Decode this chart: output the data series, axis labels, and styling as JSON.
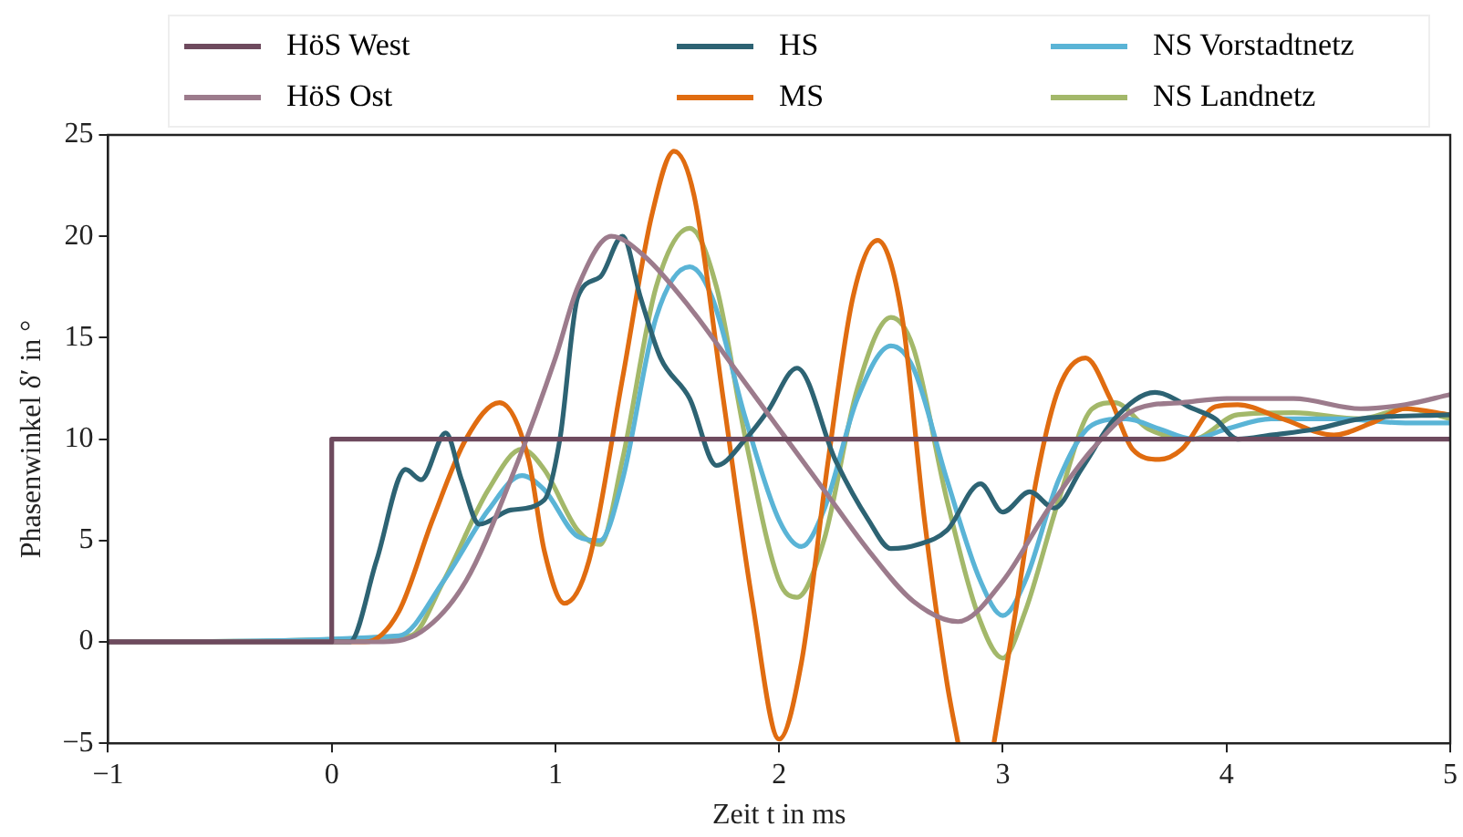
{
  "chart_data": {
    "type": "line",
    "xlabel": "Zeit t in ms",
    "ylabel": "Phasenwinkel δ′ in °",
    "xlim": [
      -1,
      5
    ],
    "xticks": [
      -1,
      0,
      1,
      2,
      3,
      4,
      5
    ],
    "ylim": [
      -5,
      25
    ],
    "yticks": [
      -5,
      0,
      5,
      10,
      15,
      20,
      25
    ],
    "grid": false,
    "legend": "top",
    "marker": "none",
    "line_style": "solid",
    "series": [
      {
        "name": "HöS West",
        "color": "#6e4a5e",
        "x": [
          -1,
          0,
          0,
          5
        ],
        "values": [
          0,
          0,
          10,
          10
        ]
      },
      {
        "name": "HöS Ost",
        "color": "#9c7b8c",
        "x": [
          -1,
          0.2,
          0.4,
          0.6,
          0.8,
          1.0,
          1.1,
          1.25,
          1.4,
          1.6,
          1.8,
          2.0,
          2.2,
          2.4,
          2.6,
          2.8,
          3.0,
          3.2,
          3.4,
          3.6,
          3.8,
          4.0,
          4.3,
          4.6,
          4.8,
          5
        ],
        "values": [
          0,
          0,
          0.5,
          3,
          8,
          14,
          17.5,
          20,
          19,
          16.5,
          13.5,
          10.5,
          7.5,
          4.5,
          2,
          1,
          3,
          6.5,
          9.5,
          11.5,
          11.8,
          12,
          12,
          11.5,
          11.7,
          12.2
        ]
      },
      {
        "name": "HS",
        "color": "#2d6373",
        "x": [
          -1,
          0.08,
          0.2,
          0.33,
          0.4,
          0.51,
          0.58,
          0.66,
          0.8,
          0.95,
          1.02,
          1.1,
          1.2,
          1.3,
          1.38,
          1.47,
          1.6,
          1.72,
          1.85,
          1.95,
          2.08,
          2.25,
          2.4,
          2.5,
          2.62,
          2.75,
          2.9,
          3.0,
          3.12,
          3.23,
          3.35,
          3.5,
          3.68,
          3.85,
          3.95,
          4.05,
          4.2,
          4.4,
          4.6,
          5
        ],
        "values": [
          0,
          0,
          4,
          8.5,
          8,
          10.3,
          8,
          5.8,
          6.5,
          7,
          10,
          17,
          18,
          20,
          17,
          14,
          12,
          8.7,
          10,
          11.4,
          13.5,
          9,
          6,
          4.6,
          4.8,
          5.5,
          7.8,
          6.4,
          7.4,
          6.6,
          8.5,
          11,
          12.3,
          11.5,
          11,
          10,
          10.2,
          10.5,
          11,
          11.2
        ]
      },
      {
        "name": "MS",
        "color": "#e06c10",
        "x": [
          -1,
          0.15,
          0.3,
          0.45,
          0.6,
          0.75,
          0.88,
          0.95,
          1.04,
          1.15,
          1.3,
          1.43,
          1.53,
          1.62,
          1.75,
          1.88,
          2.0,
          2.1,
          2.22,
          2.33,
          2.44,
          2.55,
          2.65,
          2.75,
          2.8,
          2.88,
          2.96,
          3.05,
          3.15,
          3.25,
          3.37,
          3.48,
          3.58,
          3.7,
          3.8,
          3.95,
          4.05,
          4.25,
          4.48,
          4.65,
          4.8,
          5
        ],
        "values": [
          0,
          0,
          1.5,
          6,
          10,
          11.8,
          9,
          4.5,
          1.9,
          4,
          13,
          21,
          24.2,
          22,
          12,
          2,
          -4.8,
          -1,
          9,
          17,
          19.8,
          16,
          6,
          -2,
          -5,
          null,
          -5,
          1,
          8,
          12.5,
          14,
          12,
          9.5,
          9,
          9.5,
          11.6,
          11.7,
          11,
          10.2,
          10.8,
          11.5,
          11.2
        ]
      },
      {
        "name": "NS Vorstadtnetz",
        "color": "#5ab4d6",
        "x": [
          -1,
          0.3,
          0.5,
          0.7,
          0.85,
          0.95,
          1.1,
          1.2,
          1.3,
          1.45,
          1.6,
          1.7,
          1.85,
          2.0,
          2.1,
          2.2,
          2.35,
          2.5,
          2.6,
          2.75,
          2.9,
          3.0,
          3.1,
          3.25,
          3.4,
          3.55,
          3.7,
          3.85,
          4.0,
          4.2,
          4.5,
          4.8,
          5
        ],
        "values": [
          0,
          0.3,
          3,
          6.5,
          8.2,
          7.5,
          5.2,
          5,
          8,
          16,
          18.5,
          17,
          11,
          6,
          4.7,
          6.5,
          12,
          14.6,
          13.5,
          8,
          3,
          1.3,
          3,
          8,
          10.7,
          11,
          10.5,
          10,
          10.5,
          11,
          11,
          10.8,
          10.8
        ]
      },
      {
        "name": "NS Landnetz",
        "color": "#a3b86a",
        "x": [
          -1,
          0.35,
          0.5,
          0.7,
          0.85,
          0.95,
          1.1,
          1.2,
          1.3,
          1.45,
          1.6,
          1.72,
          1.85,
          2.0,
          2.08,
          2.2,
          2.35,
          2.5,
          2.6,
          2.75,
          2.9,
          3.0,
          3.1,
          3.25,
          3.4,
          3.5,
          3.65,
          3.85,
          4.05,
          4.3,
          4.6,
          4.8,
          5
        ],
        "values": [
          0,
          0.3,
          3,
          7.5,
          9.5,
          8.5,
          5.5,
          4.8,
          9,
          17.5,
          20.4,
          17.5,
          10,
          3,
          2.2,
          5,
          12.5,
          16,
          14.5,
          7,
          1,
          -0.8,
          1.5,
          7,
          11.5,
          11.8,
          10.5,
          10,
          11.2,
          11.3,
          11,
          11.5,
          11
        ]
      }
    ]
  }
}
